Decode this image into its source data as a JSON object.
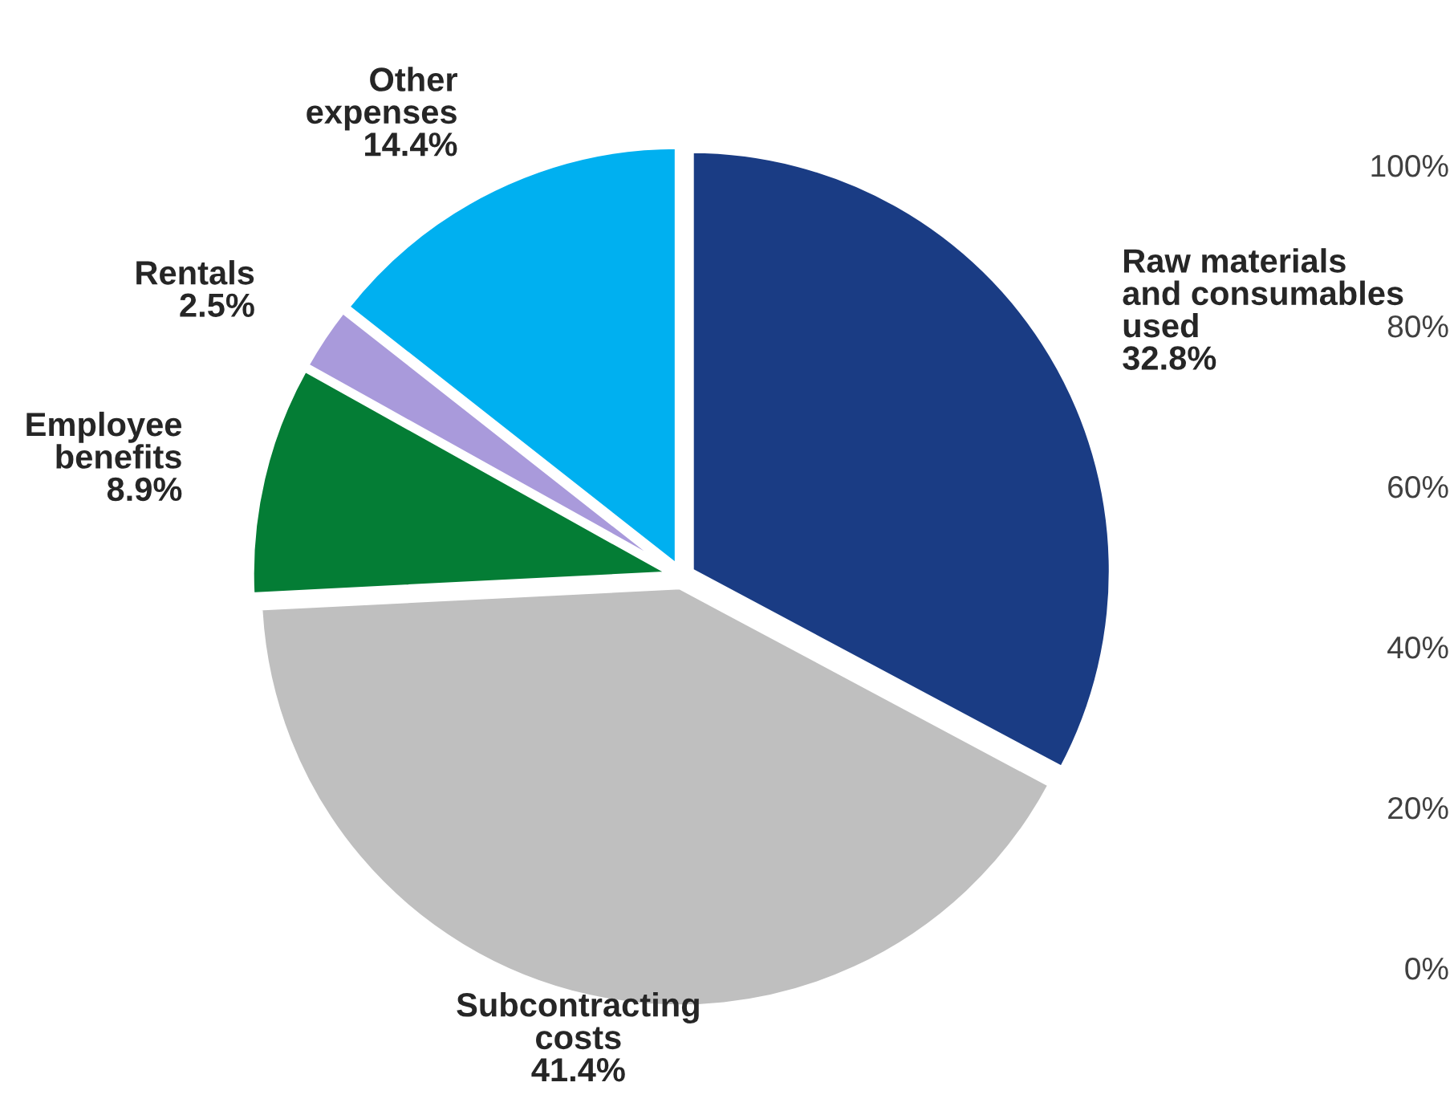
{
  "chart_data": {
    "type": "pie",
    "categories": [
      "Raw materials\nand consumables\nused",
      "Subcontracting\ncosts",
      "Employee\nbenefits",
      "Rentals",
      "Other\nexpenses"
    ],
    "values": [
      32.8,
      41.4,
      8.9,
      2.5,
      14.4
    ],
    "value_labels": [
      "32.8%",
      "41.4%",
      "8.9%",
      "2.5%",
      "14.4%"
    ],
    "colors": [
      "#1a3c84",
      "#bfbfbf",
      "#047d35",
      "#a99adb",
      "#00b0f0"
    ],
    "annotations": [
      "100%",
      "80%",
      "60%",
      "40%",
      "20%",
      "0%"
    ],
    "legend": false
  }
}
